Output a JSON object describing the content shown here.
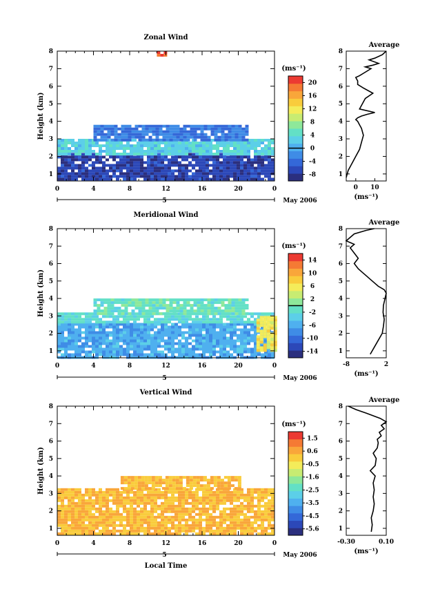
{
  "x_tick_labels": [
    "0",
    "4",
    "8",
    "12",
    "16",
    "20",
    "0"
  ],
  "y_tick_labels": [
    "1",
    "2",
    "3",
    "4",
    "5",
    "6",
    "7",
    "8"
  ],
  "height_label": "Height (km)",
  "unit_label": "(ms⁻¹)",
  "day_label": "5",
  "month_label": "May 2006",
  "xlabel": "Local Time",
  "colors": {
    "scale": [
      "#2b2f7e",
      "#2c48b8",
      "#3468d8",
      "#3f8ce6",
      "#4fb0ef",
      "#5ccfe8",
      "#63e0c6",
      "#8ee89a",
      "#c8ec72",
      "#f4ec5a",
      "#f9cc3c",
      "#f9a63a",
      "#f57a34",
      "#ec3a32"
    ],
    "zero_line": "#000000"
  },
  "chart_data": [
    {
      "type": "heatmap",
      "title": "Zonal Wind",
      "x_range": [
        0,
        24
      ],
      "y_range": [
        0.6,
        8
      ],
      "colorbar": {
        "ticks": [
          "20",
          "16",
          "12",
          "8",
          "4",
          "0",
          "-4",
          "-8"
        ],
        "range": [
          -10,
          22
        ],
        "zero_line": 0
      },
      "regions": [
        {
          "x": [
            0,
            24
          ],
          "y": [
            0.7,
            2.2
          ],
          "value": -7
        },
        {
          "x": [
            0,
            24
          ],
          "y": [
            2.2,
            3.0
          ],
          "value": 3
        },
        {
          "x": [
            4,
            21
          ],
          "y": [
            3.0,
            3.8
          ],
          "value": -3
        },
        {
          "x": [
            11,
            12
          ],
          "y": [
            7.8,
            8.0
          ],
          "value": 20
        }
      ],
      "profile": {
        "title": "Average",
        "x_range": [
          -5,
          16
        ],
        "x_ticks": [
          "0",
          "10"
        ],
        "x_tick_values": [
          0,
          10
        ],
        "unit_label": "(ms⁻¹)",
        "x": [
          -5,
          -4,
          -2,
          0,
          2,
          3,
          4,
          3,
          2,
          1,
          0,
          1,
          3,
          6,
          10,
          2,
          5,
          9,
          4,
          1,
          1,
          0,
          2,
          5,
          8,
          5,
          9,
          12,
          7,
          10,
          14,
          15,
          16
        ],
        "y": [
          0.8,
          1.2,
          1.6,
          2.0,
          2.4,
          2.8,
          3.2,
          3.6,
          3.8,
          4.0,
          4.1,
          4.2,
          4.3,
          4.4,
          4.5,
          4.7,
          5.3,
          5.6,
          5.9,
          6.1,
          6.3,
          6.5,
          6.6,
          6.8,
          7.0,
          7.1,
          7.2,
          7.3,
          7.5,
          7.6,
          7.8,
          7.9,
          8.0
        ]
      }
    },
    {
      "type": "heatmap",
      "title": "Meridional Wind",
      "x_range": [
        0,
        24
      ],
      "y_range": [
        0.6,
        8
      ],
      "colorbar": {
        "ticks": [
          "14",
          "10",
          "6",
          "2",
          "-2",
          "-6",
          "-10",
          "-14"
        ],
        "range": [
          -16,
          16
        ],
        "zero_line": 0
      },
      "regions": [
        {
          "x": [
            0,
            24
          ],
          "y": [
            0.7,
            2.6
          ],
          "value": -6
        },
        {
          "x": [
            0,
            24
          ],
          "y": [
            2.6,
            3.2
          ],
          "value": -2
        },
        {
          "x": [
            4,
            21
          ],
          "y": [
            3.2,
            4.0
          ],
          "value": -1
        },
        {
          "x": [
            22,
            24
          ],
          "y": [
            1.0,
            3.0
          ],
          "value": 6
        }
      ],
      "profile": {
        "title": "Average",
        "x_range": [
          -8,
          2
        ],
        "x_ticks": [
          "-8",
          "2"
        ],
        "x_tick_values": [
          -8,
          2
        ],
        "unit_label": "(ms⁻¹)",
        "x": [
          -2,
          -1,
          0,
          1,
          1.3,
          1.5,
          1.2,
          1.3,
          1.6,
          1.8,
          2,
          1.5,
          0,
          -1,
          -2,
          -3,
          -4,
          -5,
          -6,
          -5,
          -6,
          -7,
          -6,
          -8,
          -7,
          -6,
          -3,
          -1
        ],
        "y": [
          0.8,
          1.2,
          1.6,
          2.0,
          2.4,
          2.8,
          3.2,
          3.6,
          3.9,
          4.1,
          4.3,
          4.5,
          4.7,
          4.9,
          5.1,
          5.3,
          5.5,
          5.7,
          6.0,
          6.3,
          6.6,
          6.9,
          7.1,
          7.3,
          7.5,
          7.7,
          7.9,
          8.0
        ]
      }
    },
    {
      "type": "heatmap",
      "title": "Vertical Wind",
      "x_range": [
        0,
        24
      ],
      "y_range": [
        0.6,
        8
      ],
      "colorbar": {
        "ticks": [
          "1.5",
          "0.6",
          "-0.5",
          "-1.6",
          "-2.5",
          "-3.5",
          "-4.5",
          "-5.6"
        ],
        "range": [
          -6,
          2
        ],
        "zero_line": null
      },
      "regions": [
        {
          "x": [
            0,
            24
          ],
          "y": [
            0.7,
            3.3
          ],
          "value": 0.3
        },
        {
          "x": [
            7,
            20
          ],
          "y": [
            3.3,
            4.0
          ],
          "value": 0.2
        }
      ],
      "profile": {
        "title": "Average",
        "x_range": [
          -0.3,
          0.1
        ],
        "x_ticks": [
          "-0.30",
          "0.10"
        ],
        "x_tick_values": [
          -0.3,
          0.1
        ],
        "unit_label": "(ms⁻¹)",
        "x": [
          -0.05,
          -0.04,
          -0.05,
          -0.03,
          -0.02,
          -0.03,
          -0.02,
          -0.03,
          -0.01,
          -0.06,
          -0.01,
          0.0,
          -0.03,
          0.01,
          0.02,
          0.01,
          0.05,
          0.03,
          0.08,
          0.05,
          0.1,
          0.04,
          -0.1,
          -0.2,
          -0.28
        ],
        "y": [
          0.8,
          1.2,
          1.6,
          2.0,
          2.4,
          2.8,
          3.2,
          3.6,
          4.0,
          4.3,
          4.6,
          5.0,
          5.3,
          5.6,
          5.9,
          6.1,
          6.3,
          6.5,
          6.7,
          6.9,
          7.1,
          7.3,
          7.6,
          7.8,
          8.0
        ]
      }
    }
  ]
}
